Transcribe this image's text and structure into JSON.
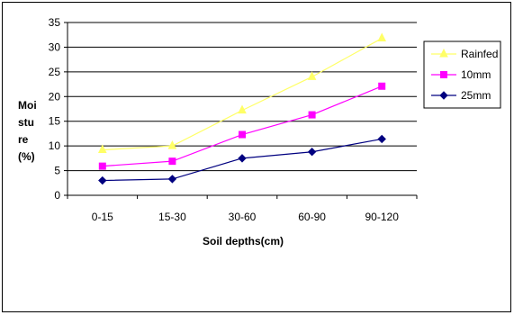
{
  "chart_data": {
    "type": "line",
    "categories": [
      "0-15",
      "15-30",
      "30-60",
      "60-90",
      "90-120"
    ],
    "series": [
      {
        "name": "Rainfed",
        "values": [
          9.2,
          10.0,
          17.2,
          24.0,
          31.8
        ],
        "color": "#ffff66",
        "marker": "triangle"
      },
      {
        "name": "10mm",
        "values": [
          5.9,
          6.9,
          12.3,
          16.3,
          22.1
        ],
        "color": "#ff00ff",
        "marker": "square"
      },
      {
        "name": "25mm",
        "values": [
          3.0,
          3.3,
          7.5,
          8.8,
          11.4
        ],
        "color": "#000080",
        "marker": "diamond"
      }
    ],
    "xlabel": "Soil depths(cm)",
    "ylabel_lines": [
      "Moi",
      "stu",
      "re",
      "(%)"
    ],
    "ylim": [
      0,
      35
    ],
    "yticks": [
      "0",
      "5",
      "10",
      "15",
      "20",
      "25",
      "30",
      "35"
    ],
    "grid": true,
    "legend_position": "right"
  }
}
